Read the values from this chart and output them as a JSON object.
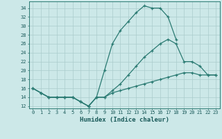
{
  "xlabel": "Humidex (Indice chaleur)",
  "x": [
    0,
    1,
    2,
    3,
    4,
    5,
    6,
    7,
    8,
    9,
    10,
    11,
    12,
    13,
    14,
    15,
    16,
    17,
    18,
    19,
    20,
    21,
    22,
    23
  ],
  "line_max": [
    16,
    15,
    14,
    14,
    14,
    14,
    13,
    12,
    14,
    20,
    26,
    29,
    31,
    33,
    34.5,
    34,
    34,
    32,
    27,
    null,
    null,
    null,
    null,
    null
  ],
  "line_mid": [
    16,
    15,
    14,
    14,
    14,
    14,
    13,
    12,
    14,
    14,
    15.5,
    17,
    19,
    21,
    23,
    24.5,
    26,
    27,
    26,
    22,
    22,
    21,
    19,
    19
  ],
  "line_min": [
    16,
    15,
    14,
    14,
    14,
    14,
    13,
    12,
    14,
    14,
    15,
    15.5,
    16,
    16.5,
    17,
    17.5,
    18,
    18.5,
    19,
    19.5,
    19.5,
    19,
    19,
    19
  ],
  "ylim": [
    11.5,
    35.5
  ],
  "yticks": [
    12,
    14,
    16,
    18,
    20,
    22,
    24,
    26,
    28,
    30,
    32,
    34
  ],
  "bg_color": "#cce8e8",
  "grid_color": "#aacccc",
  "line_color": "#2a7a72",
  "linewidth": 0.9,
  "markersize": 3.5
}
